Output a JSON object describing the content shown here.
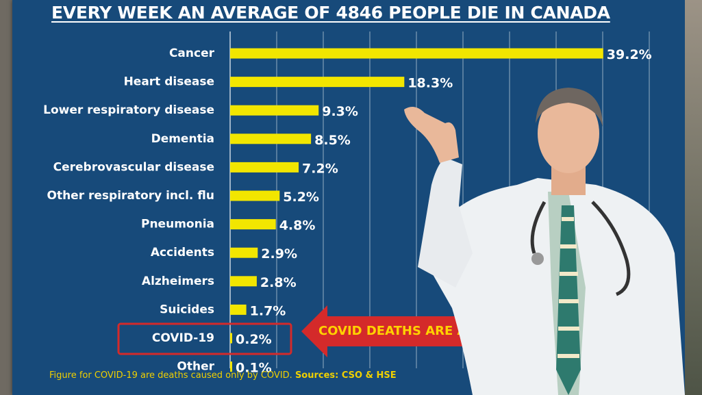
{
  "chart_data": {
    "type": "bar",
    "orientation": "horizontal",
    "title": "EVERY WEEK  AN AVERAGE OF 4846 PEOPLE DIE IN CANADA",
    "categories": [
      "Cancer",
      "Heart disease",
      "Lower respiratory disease",
      "Dementia",
      "Cerebrovascular disease",
      "Other respiratory incl. flu",
      "Pneumonia",
      "Accidents",
      "Alzheimers",
      "Suicides",
      "COVID-19",
      "Other"
    ],
    "values": [
      39.2,
      18.3,
      9.3,
      8.5,
      7.2,
      5.2,
      4.8,
      2.9,
      2.8,
      1.7,
      0.2,
      0.1
    ],
    "value_labels": [
      "39.2%",
      "18.3%",
      "9.3%",
      "8.5%",
      "7.2%",
      "5.2%",
      "4.8%",
      "2.9%",
      "2.8%",
      "1.7%",
      "0.2%",
      "0.1%"
    ],
    "highlighted": "COVID-19",
    "xlim": [
      0,
      40
    ],
    "grid": true,
    "legend": "none",
    "colors": {
      "bar": "#f2e600",
      "background": "#174a7a",
      "highlight": "#d42a2a",
      "text": "#ffffff"
    }
  },
  "annotation": {
    "text": "COVID DEATHS ARE A TINY PERCENTAGE",
    "color": "#ffd200",
    "arrow_color": "#d42a2a"
  },
  "footnote": {
    "text": "Figure for COVID-19 are deaths caused only by COVID.",
    "sources": "Sources: CSO & HSE"
  },
  "image": {
    "figure": "doctor-in-white-coat-with-stethoscope"
  }
}
